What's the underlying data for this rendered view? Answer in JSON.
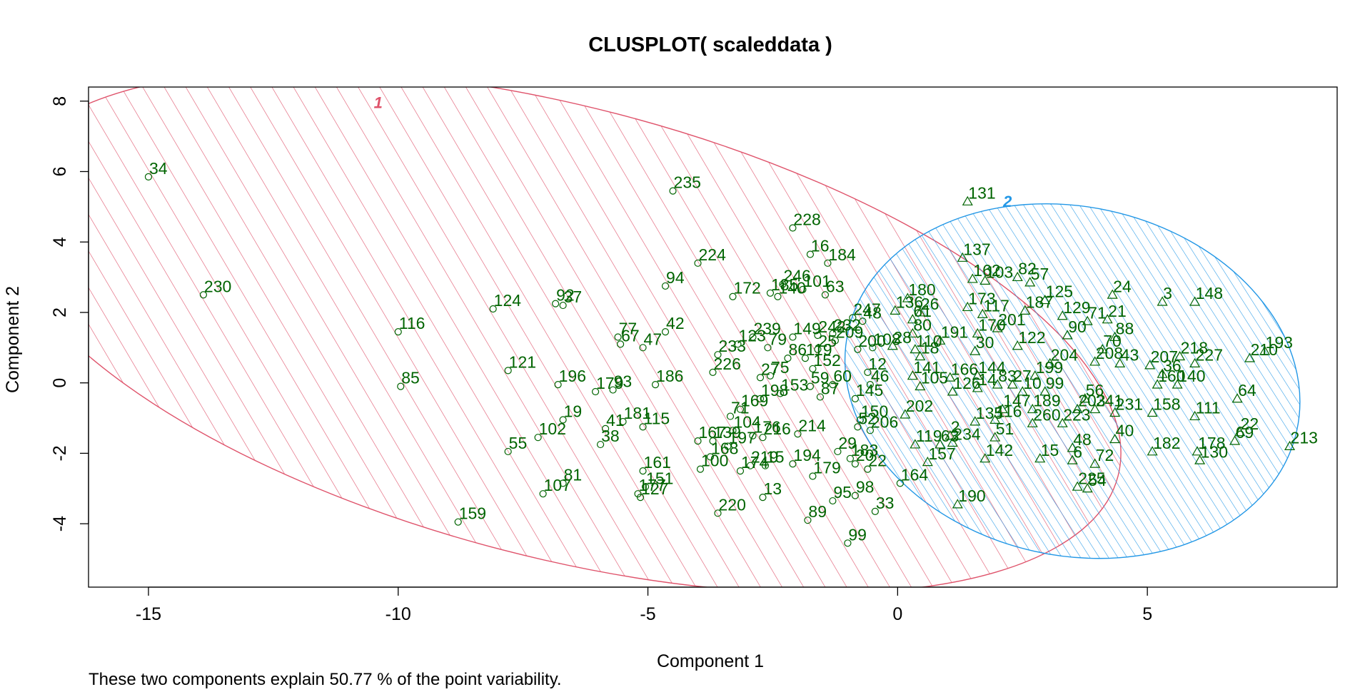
{
  "chart_data": {
    "type": "scatter",
    "title": "CLUSPLOT( scaleddata )",
    "xlabel": "Component 1",
    "ylabel": "Component 2",
    "footnote": "These two components explain 50.77 % of the point variability.",
    "xlim": [
      -16.2,
      8.8
    ],
    "ylim": [
      -5.8,
      8.4
    ],
    "xticks": [
      -15,
      -10,
      -5,
      0,
      5
    ],
    "yticks": [
      -4,
      -2,
      0,
      2,
      4,
      6,
      8
    ],
    "colors": {
      "cluster1": "#DF536B",
      "cluster2": "#2297E6",
      "points": "#006400",
      "axes": "#000000"
    },
    "clusters": [
      {
        "label": "1",
        "marker": "circle",
        "ellipse": {
          "cx": -6.77,
          "cy": 1.45,
          "rx": 11.55,
          "ry": 6.4,
          "angle_deg": -14.5
        },
        "label_pos": [
          -10.4,
          7.9
        ]
      },
      {
        "label": "2",
        "marker": "triangle",
        "ellipse": {
          "cx": 3.5,
          "cy": 0.05,
          "rx": 4.6,
          "ry": 4.95,
          "angle_deg": -12.5
        },
        "label_pos": [
          2.2,
          5.1
        ]
      }
    ],
    "points": [
      {
        "id": "34",
        "x": -15.0,
        "y": 5.85,
        "c": 1
      },
      {
        "id": "230",
        "x": -13.9,
        "y": 2.5,
        "c": 1
      },
      {
        "id": "116",
        "x": -10.0,
        "y": 1.45,
        "c": 1
      },
      {
        "id": "85",
        "x": -9.95,
        "y": -0.1,
        "c": 1
      },
      {
        "id": "124",
        "x": -8.1,
        "y": 2.1,
        "c": 1
      },
      {
        "id": "121",
        "x": -7.8,
        "y": 0.35,
        "c": 1
      },
      {
        "id": "55",
        "x": -7.8,
        "y": -1.95,
        "c": 1
      },
      {
        "id": "102",
        "x": -7.2,
        "y": -1.55,
        "c": 1
      },
      {
        "id": "107",
        "x": -7.1,
        "y": -3.15,
        "c": 1
      },
      {
        "id": "159",
        "x": -8.8,
        "y": -3.95,
        "c": 1
      },
      {
        "id": "92",
        "x": -6.85,
        "y": 2.25,
        "c": 1
      },
      {
        "id": "37",
        "x": -6.7,
        "y": 2.2,
        "c": 1
      },
      {
        "id": "196",
        "x": -6.8,
        "y": -0.05,
        "c": 1
      },
      {
        "id": "19",
        "x": -6.7,
        "y": -1.05,
        "c": 1
      },
      {
        "id": "81",
        "x": -6.7,
        "y": -2.85,
        "c": 1
      },
      {
        "id": "77",
        "x": -5.6,
        "y": 1.3,
        "c": 1
      },
      {
        "id": "67",
        "x": -5.55,
        "y": 1.1,
        "c": 1
      },
      {
        "id": "47",
        "x": -5.1,
        "y": 1.0,
        "c": 1
      },
      {
        "id": "179",
        "x": -6.05,
        "y": -0.25,
        "c": 1
      },
      {
        "id": "93",
        "x": -5.7,
        "y": -0.2,
        "c": 1
      },
      {
        "id": "41",
        "x": -5.85,
        "y": -1.3,
        "c": 1
      },
      {
        "id": "181",
        "x": -5.5,
        "y": -1.1,
        "c": 1
      },
      {
        "id": "38",
        "x": -5.95,
        "y": -1.75,
        "c": 1
      },
      {
        "id": "115",
        "x": -5.1,
        "y": -1.25,
        "c": 1
      },
      {
        "id": "186",
        "x": -4.85,
        "y": -0.05,
        "c": 1
      },
      {
        "id": "161",
        "x": -5.1,
        "y": -2.5,
        "c": 1
      },
      {
        "id": "151",
        "x": -5.05,
        "y": -2.95,
        "c": 1
      },
      {
        "id": "177",
        "x": -5.2,
        "y": -3.15,
        "c": 1
      },
      {
        "id": "127",
        "x": -5.15,
        "y": -3.25,
        "c": 1
      },
      {
        "id": "94",
        "x": -4.65,
        "y": 2.75,
        "c": 1
      },
      {
        "id": "42",
        "x": -4.65,
        "y": 1.45,
        "c": 1
      },
      {
        "id": "235",
        "x": -4.5,
        "y": 5.45,
        "c": 1
      },
      {
        "id": "224",
        "x": -4.0,
        "y": 3.4,
        "c": 1
      },
      {
        "id": "226",
        "x": -3.7,
        "y": 0.3,
        "c": 1
      },
      {
        "id": "233",
        "x": -3.6,
        "y": 0.8,
        "c": 1
      },
      {
        "id": "123",
        "x": -3.2,
        "y": 1.1,
        "c": 1
      },
      {
        "id": "172",
        "x": -3.3,
        "y": 2.45,
        "c": 1
      },
      {
        "id": "239",
        "x": -2.9,
        "y": 1.3,
        "c": 1
      },
      {
        "id": "79",
        "x": -2.6,
        "y": 1.0,
        "c": 1
      },
      {
        "id": "167",
        "x": -4.0,
        "y": -1.65,
        "c": 1
      },
      {
        "id": "139",
        "x": -3.7,
        "y": -1.65,
        "c": 1
      },
      {
        "id": "197",
        "x": -3.4,
        "y": -1.8,
        "c": 1
      },
      {
        "id": "168",
        "x": -3.75,
        "y": -2.1,
        "c": 1
      },
      {
        "id": "100",
        "x": -3.95,
        "y": -2.45,
        "c": 1
      },
      {
        "id": "104",
        "x": -3.3,
        "y": -1.35,
        "c": 1
      },
      {
        "id": "71",
        "x": -3.35,
        "y": -0.95,
        "c": 1
      },
      {
        "id": "169",
        "x": -3.15,
        "y": -0.75,
        "c": 1
      },
      {
        "id": "198",
        "x": -2.75,
        "y": -0.45,
        "c": 1
      },
      {
        "id": "153",
        "x": -2.35,
        "y": -0.3,
        "c": 1
      },
      {
        "id": "27",
        "x": -2.75,
        "y": 0.15,
        "c": 1
      },
      {
        "id": "75",
        "x": -2.55,
        "y": 0.2,
        "c": 1
      },
      {
        "id": "176",
        "x": -2.9,
        "y": -1.5,
        "c": 1
      },
      {
        "id": "216",
        "x": -2.7,
        "y": -1.55,
        "c": 1
      },
      {
        "id": "219",
        "x": -2.95,
        "y": -2.35,
        "c": 1
      },
      {
        "id": "15",
        "x": -2.65,
        "y": -2.35,
        "c": 1
      },
      {
        "id": "174",
        "x": -3.15,
        "y": -2.5,
        "c": 1
      },
      {
        "id": "13",
        "x": -2.7,
        "y": -3.25,
        "c": 1
      },
      {
        "id": "220",
        "x": -3.6,
        "y": -3.7,
        "c": 1
      },
      {
        "id": "214",
        "x": -2.0,
        "y": -1.45,
        "c": 1
      },
      {
        "id": "194",
        "x": -2.1,
        "y": -2.3,
        "c": 1
      },
      {
        "id": "179b",
        "x": -1.7,
        "y": -2.65,
        "c": 1,
        "lbl": "179"
      },
      {
        "id": "89",
        "x": -1.8,
        "y": -3.9,
        "c": 1
      },
      {
        "id": "228",
        "x": -2.1,
        "y": 4.4,
        "c": 1
      },
      {
        "id": "16",
        "x": -1.75,
        "y": 3.65,
        "c": 1
      },
      {
        "id": "184",
        "x": -1.4,
        "y": 3.4,
        "c": 1
      },
      {
        "id": "246",
        "x": -2.3,
        "y": 2.8,
        "c": 1
      },
      {
        "id": "185",
        "x": -2.55,
        "y": 2.55,
        "c": 1
      },
      {
        "id": "140",
        "x": -2.4,
        "y": 2.45,
        "c": 1
      },
      {
        "id": "101",
        "x": -1.9,
        "y": 2.65,
        "c": 1
      },
      {
        "id": "63",
        "x": -1.45,
        "y": 2.5,
        "c": 1
      },
      {
        "id": "149",
        "x": -2.1,
        "y": 1.3,
        "c": 1
      },
      {
        "id": "242",
        "x": -1.6,
        "y": 1.35,
        "c": 1
      },
      {
        "id": "232",
        "x": -1.3,
        "y": 1.4,
        "c": 1
      },
      {
        "id": "209",
        "x": -1.25,
        "y": 1.2,
        "c": 1
      },
      {
        "id": "25",
        "x": -1.6,
        "y": 0.95,
        "c": 1
      },
      {
        "id": "86",
        "x": -2.2,
        "y": 0.7,
        "c": 1
      },
      {
        "id": "119",
        "x": -1.85,
        "y": 0.7,
        "c": 1
      },
      {
        "id": "152",
        "x": -1.7,
        "y": 0.4,
        "c": 1
      },
      {
        "id": "59",
        "x": -1.75,
        "y": -0.1,
        "c": 1
      },
      {
        "id": "60",
        "x": -1.3,
        "y": -0.05,
        "c": 1
      },
      {
        "id": "87",
        "x": -1.55,
        "y": -0.4,
        "c": 1
      },
      {
        "id": "29",
        "x": -1.2,
        "y": -1.95,
        "c": 1
      },
      {
        "id": "183",
        "x": -0.95,
        "y": -2.15,
        "c": 1
      },
      {
        "id": "20",
        "x": -0.85,
        "y": -2.3,
        "c": 1
      },
      {
        "id": "95",
        "x": -1.3,
        "y": -3.35,
        "c": 1
      },
      {
        "id": "98",
        "x": -0.85,
        "y": -3.2,
        "c": 1
      },
      {
        "id": "33",
        "x": -0.45,
        "y": -3.65,
        "c": 1
      },
      {
        "id": "99",
        "x": -1.0,
        "y": -4.55,
        "c": 1
      },
      {
        "id": "22b",
        "x": -0.6,
        "y": -2.45,
        "c": 1,
        "lbl": "22"
      },
      {
        "id": "247",
        "x": -0.9,
        "y": 1.85,
        "c": 1
      },
      {
        "id": "48b",
        "x": -0.7,
        "y": 1.75,
        "c": 1,
        "lbl": "48"
      },
      {
        "id": "200",
        "x": -0.8,
        "y": 0.95,
        "c": 1
      },
      {
        "id": "108",
        "x": -0.5,
        "y": 1.0,
        "c": 1
      },
      {
        "id": "12",
        "x": -0.6,
        "y": 0.3,
        "c": 1
      },
      {
        "id": "46",
        "x": -0.55,
        "y": -0.05,
        "c": 1
      },
      {
        "id": "145",
        "x": -0.85,
        "y": -0.45,
        "c": 1
      },
      {
        "id": "150",
        "x": -0.75,
        "y": -1.05,
        "c": 1
      },
      {
        "id": "52",
        "x": -0.8,
        "y": -1.25,
        "c": 1
      },
      {
        "id": "206",
        "x": -0.55,
        "y": -1.35,
        "c": 1
      },
      {
        "id": "164",
        "x": 0.05,
        "y": -2.85,
        "c": 1
      },
      {
        "id": "131",
        "x": 1.4,
        "y": 5.15,
        "c": 2
      },
      {
        "id": "137",
        "x": 1.3,
        "y": 3.55,
        "c": 2
      },
      {
        "id": "82",
        "x": 2.4,
        "y": 3.0,
        "c": 2
      },
      {
        "id": "162",
        "x": 1.5,
        "y": 2.95,
        "c": 2
      },
      {
        "id": "103",
        "x": 1.75,
        "y": 2.9,
        "c": 2
      },
      {
        "id": "57",
        "x": 2.65,
        "y": 2.85,
        "c": 2
      },
      {
        "id": "180",
        "x": 0.2,
        "y": 2.4,
        "c": 2
      },
      {
        "id": "136",
        "x": -0.05,
        "y": 2.05,
        "c": 2
      },
      {
        "id": "26",
        "x": 0.45,
        "y": 2.0,
        "c": 2
      },
      {
        "id": "61",
        "x": 0.3,
        "y": 1.8,
        "c": 2
      },
      {
        "id": "173",
        "x": 1.4,
        "y": 2.15,
        "c": 2
      },
      {
        "id": "117",
        "x": 1.7,
        "y": 1.95,
        "c": 2
      },
      {
        "id": "187",
        "x": 2.55,
        "y": 2.05,
        "c": 2
      },
      {
        "id": "125",
        "x": 2.95,
        "y": 2.35,
        "c": 2
      },
      {
        "id": "129",
        "x": 3.3,
        "y": 1.9,
        "c": 2
      },
      {
        "id": "71b",
        "x": 3.8,
        "y": 1.75,
        "c": 2,
        "lbl": "71"
      },
      {
        "id": "21",
        "x": 4.2,
        "y": 1.8,
        "c": 2
      },
      {
        "id": "24",
        "x": 4.3,
        "y": 2.5,
        "c": 2
      },
      {
        "id": "3",
        "x": 5.3,
        "y": 2.3,
        "c": 2
      },
      {
        "id": "148",
        "x": 5.95,
        "y": 2.3,
        "c": 2
      },
      {
        "id": "80",
        "x": 0.3,
        "y": 1.4,
        "c": 2
      },
      {
        "id": "191",
        "x": 0.85,
        "y": 1.2,
        "c": 2
      },
      {
        "id": "170",
        "x": 1.6,
        "y": 1.4,
        "c": 2
      },
      {
        "id": "201",
        "x": 2.0,
        "y": 1.55,
        "c": 2
      },
      {
        "id": "28",
        "x": -0.1,
        "y": 1.05,
        "c": 2
      },
      {
        "id": "110",
        "x": 0.35,
        "y": 0.95,
        "c": 2
      },
      {
        "id": "18",
        "x": 0.45,
        "y": 0.75,
        "c": 2
      },
      {
        "id": "30",
        "x": 1.55,
        "y": 0.9,
        "c": 2
      },
      {
        "id": "90",
        "x": 3.4,
        "y": 1.35,
        "c": 2
      },
      {
        "id": "88",
        "x": 4.35,
        "y": 1.3,
        "c": 2
      },
      {
        "id": "70",
        "x": 4.1,
        "y": 0.95,
        "c": 2
      },
      {
        "id": "43",
        "x": 4.45,
        "y": 0.55,
        "c": 2
      },
      {
        "id": "208",
        "x": 3.95,
        "y": 0.6,
        "c": 2
      },
      {
        "id": "207",
        "x": 5.05,
        "y": 0.5,
        "c": 2
      },
      {
        "id": "218",
        "x": 5.65,
        "y": 0.75,
        "c": 2
      },
      {
        "id": "227",
        "x": 5.95,
        "y": 0.55,
        "c": 2
      },
      {
        "id": "193",
        "x": 7.35,
        "y": 0.9,
        "c": 2
      },
      {
        "id": "210",
        "x": 7.05,
        "y": 0.7,
        "c": 2
      },
      {
        "id": "36",
        "x": 5.3,
        "y": 0.25,
        "c": 2
      },
      {
        "id": "160",
        "x": 5.2,
        "y": -0.05,
        "c": 2
      },
      {
        "id": "140b",
        "x": 5.6,
        "y": -0.05,
        "c": 2,
        "lbl": "140"
      },
      {
        "id": "64",
        "x": 6.8,
        "y": -0.45,
        "c": 2
      },
      {
        "id": "111",
        "x": 5.95,
        "y": -0.95,
        "c": 2
      },
      {
        "id": "158",
        "x": 5.1,
        "y": -0.85,
        "c": 2
      },
      {
        "id": "231",
        "x": 4.35,
        "y": -0.85,
        "c": 2
      },
      {
        "id": "141",
        "x": 0.3,
        "y": 0.2,
        "c": 2
      },
      {
        "id": "105",
        "x": 0.45,
        "y": -0.1,
        "c": 2
      },
      {
        "id": "14",
        "x": 1.6,
        "y": -0.15,
        "c": 2
      },
      {
        "id": "83",
        "x": 2.0,
        "y": -0.05,
        "c": 2
      },
      {
        "id": "27b",
        "x": 2.3,
        "y": -0.05,
        "c": 2,
        "lbl": "27"
      },
      {
        "id": "10",
        "x": 2.5,
        "y": -0.25,
        "c": 2
      },
      {
        "id": "99b",
        "x": 2.95,
        "y": -0.25,
        "c": 2,
        "lbl": "99"
      },
      {
        "id": "126",
        "x": 1.1,
        "y": -0.25,
        "c": 2
      },
      {
        "id": "56",
        "x": 3.75,
        "y": -0.45,
        "c": 2
      },
      {
        "id": "203",
        "x": 3.6,
        "y": -0.75,
        "c": 2
      },
      {
        "id": "241",
        "x": 3.95,
        "y": -0.75,
        "c": 2
      },
      {
        "id": "147",
        "x": 2.1,
        "y": -0.75,
        "c": 2
      },
      {
        "id": "189",
        "x": 2.7,
        "y": -0.75,
        "c": 2
      },
      {
        "id": "202",
        "x": 0.15,
        "y": -0.9,
        "c": 2
      },
      {
        "id": "135",
        "x": 1.55,
        "y": -1.1,
        "c": 2
      },
      {
        "id": "116b",
        "x": 1.95,
        "y": -1.05,
        "c": 2,
        "lbl": "116"
      },
      {
        "id": "260",
        "x": 2.7,
        "y": -1.15,
        "c": 2
      },
      {
        "id": "223",
        "x": 3.3,
        "y": -1.15,
        "c": 2
      },
      {
        "id": "51",
        "x": 1.95,
        "y": -1.55,
        "c": 2
      },
      {
        "id": "2",
        "x": 1.05,
        "y": -1.5,
        "c": 2
      },
      {
        "id": "234",
        "x": 1.1,
        "y": -1.7,
        "c": 2
      },
      {
        "id": "119b",
        "x": 0.35,
        "y": -1.75,
        "c": 2,
        "lbl": "119"
      },
      {
        "id": "63b",
        "x": 0.85,
        "y": -1.75,
        "c": 2,
        "lbl": "63"
      },
      {
        "id": "157",
        "x": 0.6,
        "y": -2.25,
        "c": 2
      },
      {
        "id": "142",
        "x": 1.75,
        "y": -2.15,
        "c": 2
      },
      {
        "id": "15b",
        "x": 2.85,
        "y": -2.15,
        "c": 2,
        "lbl": "15"
      },
      {
        "id": "48",
        "x": 3.5,
        "y": -1.85,
        "c": 2
      },
      {
        "id": "40",
        "x": 4.35,
        "y": -1.6,
        "c": 2
      },
      {
        "id": "182",
        "x": 5.1,
        "y": -1.95,
        "c": 2
      },
      {
        "id": "178",
        "x": 6.0,
        "y": -1.95,
        "c": 2
      },
      {
        "id": "130",
        "x": 6.05,
        "y": -2.2,
        "c": 2
      },
      {
        "id": "69",
        "x": 6.75,
        "y": -1.65,
        "c": 2
      },
      {
        "id": "22",
        "x": 6.85,
        "y": -1.4,
        "c": 2
      },
      {
        "id": "213",
        "x": 7.85,
        "y": -1.8,
        "c": 2
      },
      {
        "id": "6",
        "x": 3.5,
        "y": -2.2,
        "c": 2
      },
      {
        "id": "72",
        "x": 3.95,
        "y": -2.3,
        "c": 2
      },
      {
        "id": "225",
        "x": 3.6,
        "y": -2.95,
        "c": 2
      },
      {
        "id": "54",
        "x": 3.8,
        "y": -3.0,
        "c": 2
      },
      {
        "id": "190",
        "x": 1.2,
        "y": -3.45,
        "c": 2
      },
      {
        "id": "144",
        "x": 1.6,
        "y": 0.2,
        "c": 2
      },
      {
        "id": "166",
        "x": 1.05,
        "y": 0.15,
        "c": 2
      },
      {
        "id": "199",
        "x": 2.75,
        "y": 0.2,
        "c": 2
      },
      {
        "id": "122",
        "x": 2.4,
        "y": 1.05,
        "c": 2
      },
      {
        "id": "204",
        "x": 3.05,
        "y": 0.55,
        "c": 2
      }
    ]
  }
}
